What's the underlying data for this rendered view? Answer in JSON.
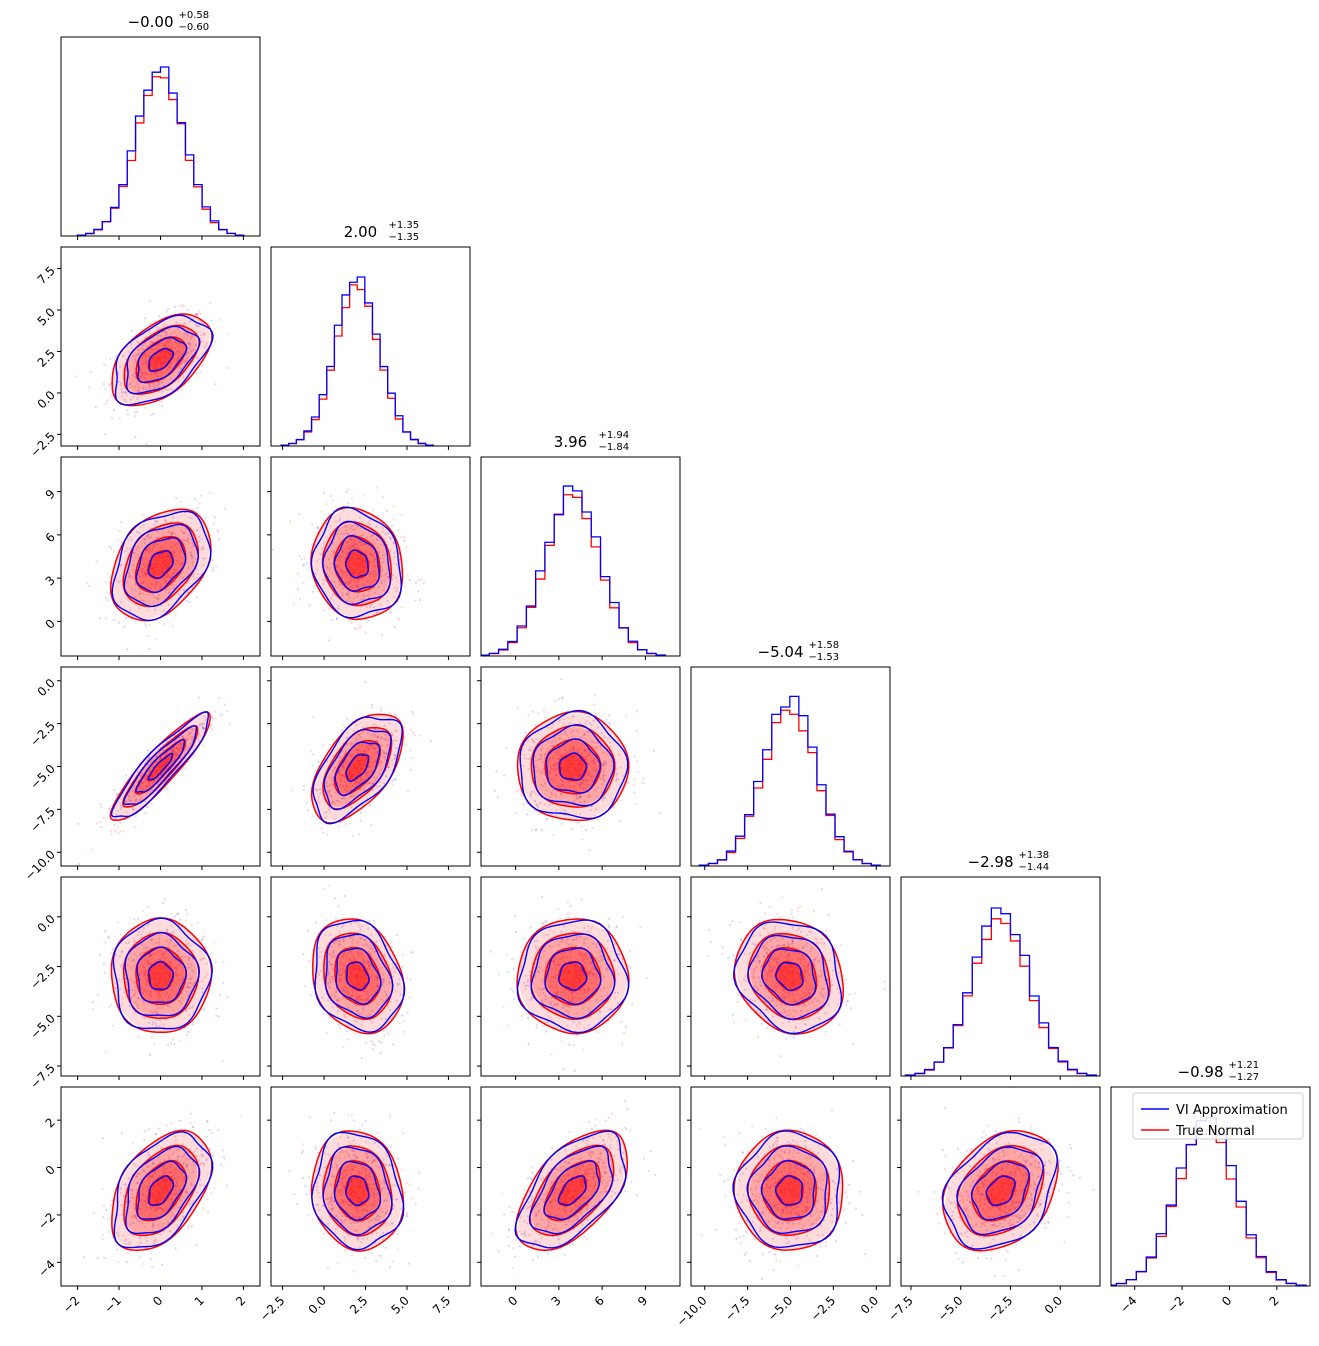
{
  "colors": {
    "vi": "#0000ff",
    "true": "#ff0000"
  },
  "chart_data": {
    "type": "corner",
    "legend": {
      "placement": "upper-right of last diagonal panel",
      "entries": [
        {
          "label": "VI Approximation",
          "color": "#0000ff"
        },
        {
          "label": "True Normal",
          "color": "#ff0000"
        }
      ]
    },
    "parameters": [
      {
        "index": 0,
        "median": -0.0,
        "sd": 0.59,
        "range": [
          -2.4,
          2.4
        ],
        "ticks": [
          -2,
          -1,
          0,
          1,
          2
        ],
        "tick_labels": [
          "−2",
          "−1",
          "0",
          "1",
          "2"
        ],
        "title": {
          "main": "−0.00",
          "sup": "+0.58",
          "sub": "−0.60"
        }
      },
      {
        "index": 1,
        "median": 2.0,
        "sd": 1.35,
        "range": [
          -3.2,
          8.8
        ],
        "ticks": [
          -2.5,
          0,
          2.5,
          5,
          7.5
        ],
        "tick_labels": [
          "−2.5",
          "0.0",
          "2.5",
          "5.0",
          "7.5"
        ],
        "title": {
          "main": "2.00",
          "sup": "+1.35",
          "sub": "−1.35"
        }
      },
      {
        "index": 2,
        "median": 3.96,
        "sd": 1.89,
        "range": [
          -2.4,
          11.4
        ],
        "ticks": [
          0,
          3,
          6,
          9
        ],
        "tick_labels": [
          "0",
          "3",
          "6",
          "9"
        ],
        "title": {
          "main": "3.96",
          "sup": "+1.94",
          "sub": "−1.84"
        }
      },
      {
        "index": 3,
        "median": -5.04,
        "sd": 1.55,
        "range": [
          -10.8,
          0.8
        ],
        "ticks": [
          -10,
          -7.5,
          -5,
          -2.5,
          0
        ],
        "tick_labels": [
          "−10.0",
          "−7.5",
          "−5.0",
          "−2.5",
          "0.0"
        ],
        "title": {
          "main": "−5.04",
          "sup": "+1.58",
          "sub": "−1.53"
        }
      },
      {
        "index": 4,
        "median": -2.98,
        "sd": 1.41,
        "range": [
          -8.0,
          2.0
        ],
        "ticks": [
          -7.5,
          -5,
          -2.5,
          0
        ],
        "tick_labels": [
          "−7.5",
          "−5.0",
          "−2.5",
          "0.0"
        ],
        "title": {
          "main": "−2.98",
          "sup": "+1.38",
          "sub": "−1.44"
        }
      },
      {
        "index": 5,
        "median": -0.98,
        "sd": 1.24,
        "range": [
          -5.0,
          3.4
        ],
        "ticks": [
          -4,
          -2,
          0,
          2
        ],
        "tick_labels": [
          "−4",
          "−2",
          "0",
          "2"
        ],
        "title": {
          "main": "−0.98",
          "sup": "+1.21",
          "sub": "−1.27"
        }
      }
    ],
    "correlations": [
      {
        "i": 1,
        "j": 0,
        "rho": 0.5
      },
      {
        "i": 2,
        "j": 0,
        "rho": 0.35
      },
      {
        "i": 2,
        "j": 1,
        "rho": -0.1
      },
      {
        "i": 3,
        "j": 0,
        "rho": 0.9
      },
      {
        "i": 3,
        "j": 1,
        "rho": 0.55
      },
      {
        "i": 3,
        "j": 2,
        "rho": 0.0
      },
      {
        "i": 4,
        "j": 0,
        "rho": 0.0
      },
      {
        "i": 4,
        "j": 1,
        "rho": -0.2
      },
      {
        "i": 4,
        "j": 2,
        "rho": 0.0
      },
      {
        "i": 4,
        "j": 3,
        "rho": -0.15
      },
      {
        "i": 5,
        "j": 0,
        "rho": 0.45
      },
      {
        "i": 5,
        "j": 1,
        "rho": -0.1
      },
      {
        "i": 5,
        "j": 2,
        "rho": 0.55
      },
      {
        "i": 5,
        "j": 3,
        "rho": 0.0
      },
      {
        "i": 5,
        "j": 4,
        "rho": 0.3
      }
    ]
  }
}
